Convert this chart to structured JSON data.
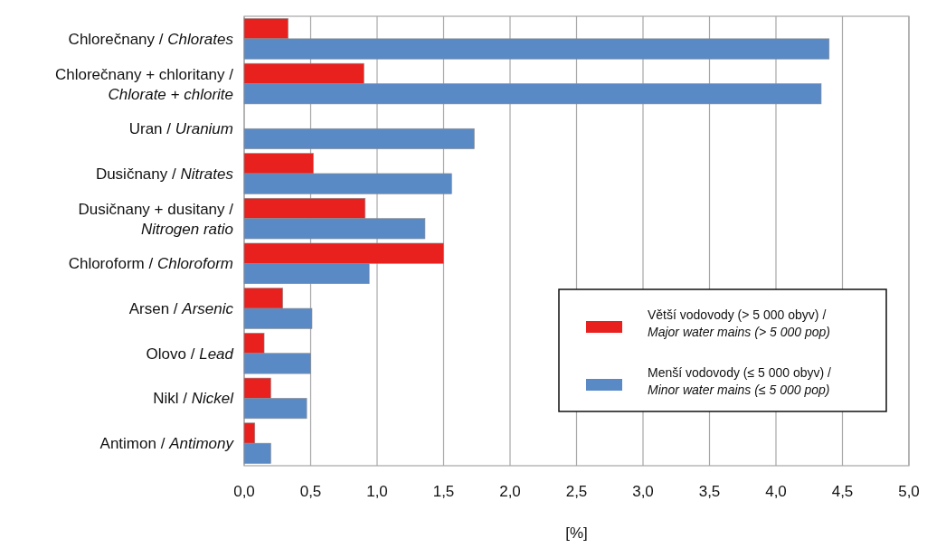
{
  "chart_data": {
    "type": "bar",
    "orientation": "horizontal",
    "xlabel": "[%]",
    "categories": [
      "Chlorečnany / Chlorates",
      "Chlorečnany + chloritany / Chlorate + chlorite",
      "Uran / Uranium",
      "Dusičnany / Nitrates",
      "Dusičnany + dusitany / Nitrogen ratio",
      "Chloroform / Chloroform",
      "Arsen / Arsenic",
      "Olovo / Lead",
      "Nikl / Nickel",
      "Antimon / Antimony"
    ],
    "series": [
      {
        "name": "Větší vodovody (> 5 000 obyv) / Major water mains (> 5 000 pop)",
        "color": "#e8201e",
        "values": [
          0.33,
          0.9,
          null,
          0.52,
          0.91,
          1.5,
          0.29,
          0.15,
          0.2,
          0.08
        ]
      },
      {
        "name": "Menší vodovody (≤ 5 000 obyv) / Minor water mains (≤ 5 000 pop)",
        "color": "#5a8ac6",
        "values": [
          4.4,
          4.34,
          1.73,
          1.56,
          1.36,
          0.94,
          0.51,
          0.5,
          0.47,
          0.2
        ]
      }
    ],
    "xlim": [
      0,
      5
    ],
    "xticks": [
      {
        "value": 0,
        "label": "0,0"
      },
      {
        "value": 0.5,
        "label": "0,5"
      },
      {
        "value": 1,
        "label": "1,0"
      },
      {
        "value": 1.5,
        "label": "1,5"
      },
      {
        "value": 2,
        "label": "2,0"
      },
      {
        "value": 2.5,
        "label": "2,5"
      },
      {
        "value": 3,
        "label": "3,0"
      },
      {
        "value": 3.5,
        "label": "3,5"
      },
      {
        "value": 4,
        "label": "4,0"
      },
      {
        "value": 4.5,
        "label": "4,5"
      },
      {
        "value": 5,
        "label": "5,0"
      }
    ],
    "grid": "x",
    "legend": "right"
  }
}
